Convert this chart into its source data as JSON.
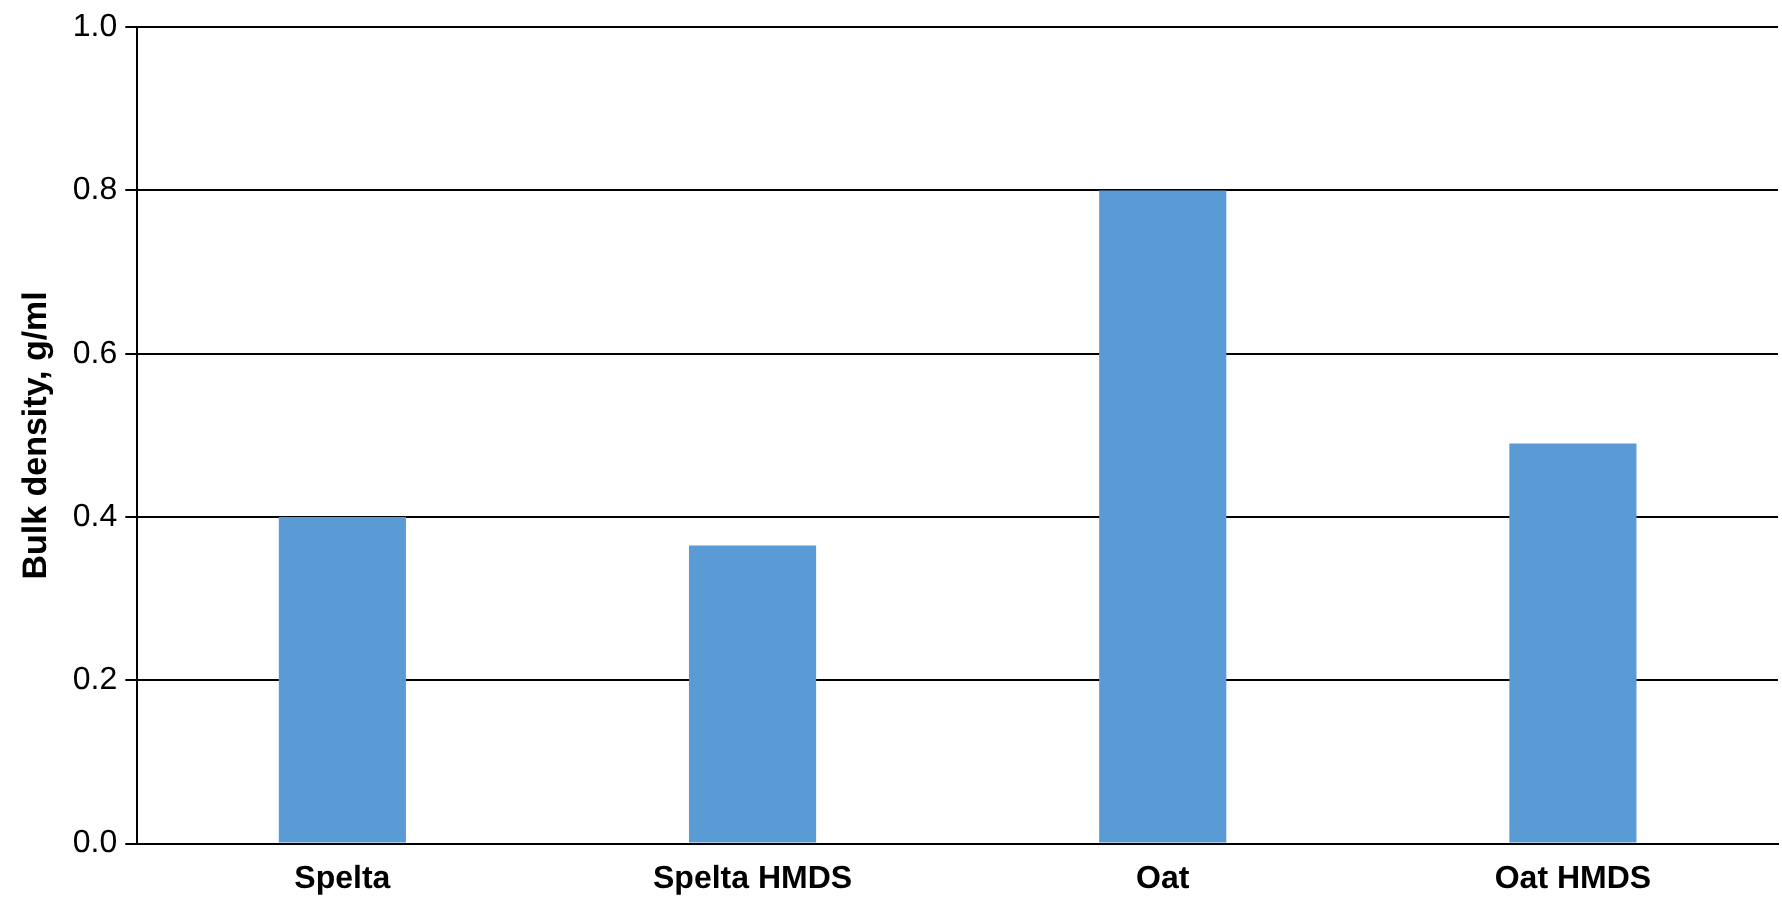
{
  "chart_data": {
    "type": "bar",
    "ylabel": "Bulk density, g/ml",
    "categories": [
      "Spelta",
      "Spelta HMDS",
      "Oat",
      "Oat HMDS"
    ],
    "values": [
      0.4,
      0.365,
      0.8,
      0.49
    ],
    "color": "#5b9bd5",
    "ylim": [
      0,
      1.0
    ],
    "yticks": [
      {
        "value": 0,
        "label": "0.0"
      },
      {
        "value": 0.2,
        "label": "0.2"
      },
      {
        "value": 0.4,
        "label": "0.4"
      },
      {
        "value": 0.6,
        "label": "0.6"
      },
      {
        "value": 0.8,
        "label": "0.8"
      },
      {
        "value": 1.0,
        "label": "1.0"
      }
    ],
    "grid": "y",
    "legend": false
  }
}
